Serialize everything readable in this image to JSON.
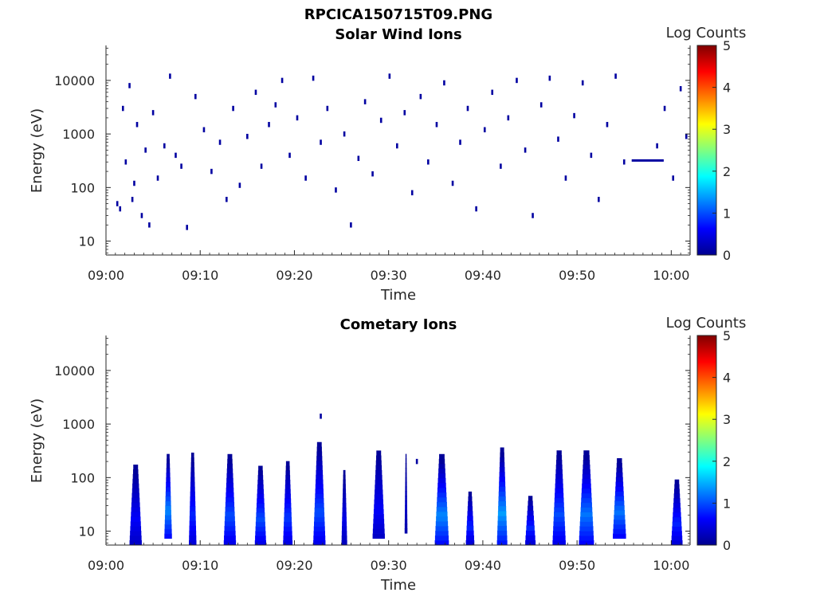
{
  "figure": {
    "filename_title": "RPCICA150715T09.PNG"
  },
  "chart_data": [
    {
      "type": "heatmap",
      "title": "Solar Wind Ions",
      "xlabel": "Time",
      "ylabel": "Energy (eV)",
      "y_scale": "log",
      "ylim": [
        5.5,
        45000
      ],
      "xlim": [
        "09:00",
        "10:02"
      ],
      "x_ticks": [
        "09:00",
        "09:10",
        "09:20",
        "09:30",
        "09:40",
        "09:50",
        "10:00"
      ],
      "y_ticks": [
        "10",
        "100",
        "1000",
        "10000"
      ],
      "colorbar": {
        "label": "Log Counts",
        "min": 0,
        "max": 5,
        "ticks": [
          "0",
          "1",
          "2",
          "3",
          "4",
          "5"
        ],
        "colormap": "jet"
      },
      "description_level": "sparse scattered counts (~0-0.3 log counts) between 6 eV and 13000 eV from 09:01 to 10:02, with a continuous line near 320 eV from 09:56 to 09:59",
      "cells": [
        {
          "t": 1.2,
          "e": 50,
          "v": 0.1
        },
        {
          "t": 1.5,
          "e": 40,
          "v": 0.1
        },
        {
          "t": 1.8,
          "e": 3000,
          "v": 0.1
        },
        {
          "t": 2.1,
          "e": 300,
          "v": 0.1
        },
        {
          "t": 2.5,
          "e": 8000,
          "v": 0.1
        },
        {
          "t": 2.8,
          "e": 60,
          "v": 0.1
        },
        {
          "t": 3.0,
          "e": 120,
          "v": 0.1
        },
        {
          "t": 3.3,
          "e": 1500,
          "v": 0.1
        },
        {
          "t": 3.8,
          "e": 30,
          "v": 0.1
        },
        {
          "t": 4.2,
          "e": 500,
          "v": 0.1
        },
        {
          "t": 4.6,
          "e": 20,
          "v": 0.1
        },
        {
          "t": 5.0,
          "e": 2500,
          "v": 0.1
        },
        {
          "t": 5.5,
          "e": 150,
          "v": 0.1
        },
        {
          "t": 6.2,
          "e": 600,
          "v": 0.1
        },
        {
          "t": 6.8,
          "e": 12000,
          "v": 0.1
        },
        {
          "t": 7.4,
          "e": 400,
          "v": 0.1
        },
        {
          "t": 8.0,
          "e": 250,
          "v": 0.1
        },
        {
          "t": 8.6,
          "e": 18,
          "v": 0.1
        },
        {
          "t": 9.5,
          "e": 5000,
          "v": 0.1
        },
        {
          "t": 10.4,
          "e": 1200,
          "v": 0.1
        },
        {
          "t": 11.2,
          "e": 200,
          "v": 0.1
        },
        {
          "t": 12.1,
          "e": 700,
          "v": 0.1
        },
        {
          "t": 12.8,
          "e": 60,
          "v": 0.1
        },
        {
          "t": 13.5,
          "e": 3000,
          "v": 0.1
        },
        {
          "t": 14.2,
          "e": 110,
          "v": 0.1
        },
        {
          "t": 15.0,
          "e": 900,
          "v": 0.1
        },
        {
          "t": 15.9,
          "e": 6000,
          "v": 0.1
        },
        {
          "t": 16.5,
          "e": 250,
          "v": 0.1
        },
        {
          "t": 17.3,
          "e": 1500,
          "v": 0.1
        },
        {
          "t": 18.0,
          "e": 3500,
          "v": 0.1
        },
        {
          "t": 18.7,
          "e": 10000,
          "v": 0.1
        },
        {
          "t": 19.5,
          "e": 400,
          "v": 0.1
        },
        {
          "t": 20.3,
          "e": 2000,
          "v": 0.1
        },
        {
          "t": 21.2,
          "e": 150,
          "v": 0.1
        },
        {
          "t": 22.0,
          "e": 11000,
          "v": 0.1
        },
        {
          "t": 22.8,
          "e": 700,
          "v": 0.1
        },
        {
          "t": 23.5,
          "e": 3000,
          "v": 0.1
        },
        {
          "t": 24.4,
          "e": 90,
          "v": 0.1
        },
        {
          "t": 25.3,
          "e": 1000,
          "v": 0.1
        },
        {
          "t": 26.0,
          "e": 20,
          "v": 0.1
        },
        {
          "t": 26.8,
          "e": 350,
          "v": 0.1
        },
        {
          "t": 27.5,
          "e": 4000,
          "v": 0.1
        },
        {
          "t": 28.3,
          "e": 180,
          "v": 0.1
        },
        {
          "t": 29.2,
          "e": 1800,
          "v": 0.1
        },
        {
          "t": 30.1,
          "e": 12000,
          "v": 0.1
        },
        {
          "t": 30.9,
          "e": 600,
          "v": 0.1
        },
        {
          "t": 31.7,
          "e": 2500,
          "v": 0.1
        },
        {
          "t": 32.5,
          "e": 80,
          "v": 0.1
        },
        {
          "t": 33.4,
          "e": 5000,
          "v": 0.1
        },
        {
          "t": 34.2,
          "e": 300,
          "v": 0.1
        },
        {
          "t": 35.1,
          "e": 1500,
          "v": 0.1
        },
        {
          "t": 35.9,
          "e": 9000,
          "v": 0.1
        },
        {
          "t": 36.8,
          "e": 120,
          "v": 0.1
        },
        {
          "t": 37.6,
          "e": 700,
          "v": 0.1
        },
        {
          "t": 38.4,
          "e": 3000,
          "v": 0.1
        },
        {
          "t": 39.3,
          "e": 40,
          "v": 0.1
        },
        {
          "t": 40.2,
          "e": 1200,
          "v": 0.1
        },
        {
          "t": 41.0,
          "e": 6000,
          "v": 0.1
        },
        {
          "t": 41.9,
          "e": 250,
          "v": 0.1
        },
        {
          "t": 42.7,
          "e": 2000,
          "v": 0.1
        },
        {
          "t": 43.6,
          "e": 10000,
          "v": 0.1
        },
        {
          "t": 44.5,
          "e": 500,
          "v": 0.1
        },
        {
          "t": 45.3,
          "e": 30,
          "v": 0.1
        },
        {
          "t": 46.2,
          "e": 3500,
          "v": 0.1
        },
        {
          "t": 47.1,
          "e": 11000,
          "v": 0.1
        },
        {
          "t": 48.0,
          "e": 800,
          "v": 0.1
        },
        {
          "t": 48.8,
          "e": 150,
          "v": 0.1
        },
        {
          "t": 49.7,
          "e": 2200,
          "v": 0.1
        },
        {
          "t": 50.6,
          "e": 9000,
          "v": 0.1
        },
        {
          "t": 51.5,
          "e": 400,
          "v": 0.1
        },
        {
          "t": 52.3,
          "e": 60,
          "v": 0.1
        },
        {
          "t": 53.2,
          "e": 1500,
          "v": 0.1
        },
        {
          "t": 54.1,
          "e": 12000,
          "v": 0.1
        },
        {
          "t": 55.0,
          "e": 300,
          "v": 0.1
        },
        {
          "t": 58.5,
          "e": 600,
          "v": 0.1
        },
        {
          "t": 59.3,
          "e": 3000,
          "v": 0.1
        },
        {
          "t": 60.2,
          "e": 150,
          "v": 0.1
        },
        {
          "t": 61.0,
          "e": 7000,
          "v": 0.1
        },
        {
          "t": 61.6,
          "e": 900,
          "v": 0.1
        }
      ],
      "line_segment": {
        "t_start": 55.8,
        "t_end": 59.2,
        "e": 320,
        "v": 0.1
      }
    },
    {
      "type": "heatmap",
      "title": "Cometary Ions",
      "xlabel": "Time",
      "ylabel": "Energy (eV)",
      "y_scale": "log",
      "ylim": [
        5.5,
        45000
      ],
      "xlim": [
        "09:00",
        "10:02"
      ],
      "x_ticks": [
        "09:00",
        "09:10",
        "09:20",
        "09:30",
        "09:40",
        "09:50",
        "10:00"
      ],
      "y_ticks": [
        "10",
        "100",
        "1000",
        "10000"
      ],
      "colorbar": {
        "label": "Log Counts",
        "min": 0,
        "max": 5,
        "ticks": [
          "0",
          "1",
          "2",
          "3",
          "4",
          "5"
        ],
        "colormap": "jet"
      },
      "bursts": [
        {
          "t_start": 2.5,
          "t_end": 3.8,
          "e_low": 6,
          "e_high": 190,
          "peak": 0.6
        },
        {
          "t_start": 6.2,
          "t_end": 7.0,
          "e_low": 8,
          "e_high": 300,
          "peak": 1.3
        },
        {
          "t_start": 8.8,
          "t_end": 9.6,
          "e_low": 6,
          "e_high": 320,
          "peak": 0.8
        },
        {
          "t_start": 12.5,
          "t_end": 13.8,
          "e_low": 6,
          "e_high": 300,
          "peak": 1.0
        },
        {
          "t_start": 15.8,
          "t_end": 17.0,
          "e_low": 6,
          "e_high": 180,
          "peak": 1.0
        },
        {
          "t_start": 18.8,
          "t_end": 19.8,
          "e_low": 6,
          "e_high": 220,
          "peak": 0.9
        },
        {
          "t_start": 22.0,
          "t_end": 23.3,
          "e_low": 6,
          "e_high": 500,
          "peak": 1.0
        },
        {
          "t_start": 25.0,
          "t_end": 25.6,
          "e_low": 6,
          "e_high": 150,
          "peak": 0.5
        },
        {
          "t_start": 28.3,
          "t_end": 29.6,
          "e_low": 8,
          "e_high": 350,
          "peak": 0.6
        },
        {
          "t_start": 31.7,
          "t_end": 32.0,
          "e_low": 10,
          "e_high": 300,
          "peak": 0.3
        },
        {
          "t_start": 34.9,
          "t_end": 36.4,
          "e_low": 6,
          "e_high": 300,
          "peak": 1.3
        },
        {
          "t_start": 38.2,
          "t_end": 39.1,
          "e_low": 6,
          "e_high": 60,
          "peak": 0.8
        },
        {
          "t_start": 41.5,
          "t_end": 42.6,
          "e_low": 6,
          "e_high": 400,
          "peak": 1.4
        },
        {
          "t_start": 44.5,
          "t_end": 45.6,
          "e_low": 6,
          "e_high": 50,
          "peak": 0.8
        },
        {
          "t_start": 47.4,
          "t_end": 48.8,
          "e_low": 6,
          "e_high": 350,
          "peak": 1.0
        },
        {
          "t_start": 50.2,
          "t_end": 51.8,
          "e_low": 6,
          "e_high": 350,
          "peak": 1.2
        },
        {
          "t_start": 53.8,
          "t_end": 55.2,
          "e_low": 8,
          "e_high": 250,
          "peak": 1.2
        },
        {
          "t_start": 60.0,
          "t_end": 61.2,
          "e_low": 6,
          "e_high": 100,
          "peak": 0.8
        }
      ],
      "isolated": [
        {
          "t": 22.8,
          "e": 1400,
          "v": 0.1
        },
        {
          "t": 33.0,
          "e": 200,
          "v": 0.1
        }
      ]
    }
  ]
}
